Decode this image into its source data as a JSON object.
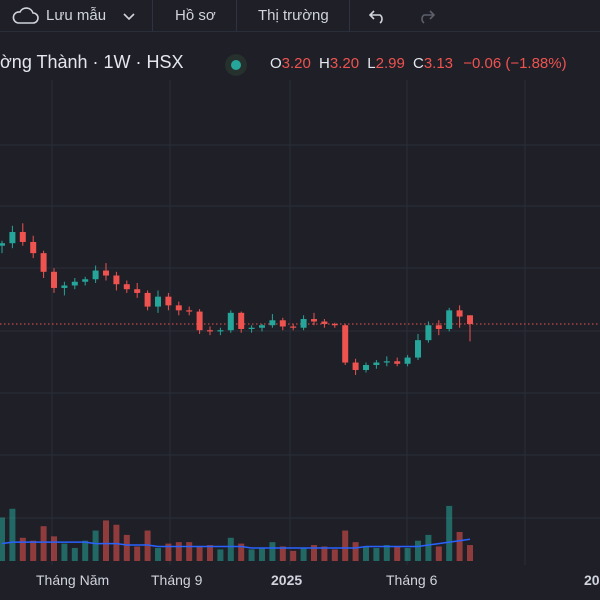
{
  "toolbar": {
    "save_label": "Lưu mẫu",
    "profile_label": "Hồ sơ",
    "market_label": "Thị trường"
  },
  "legend": {
    "symbol": "ờng Thành · 1W · HSX",
    "open_label": "O",
    "open": "3.20",
    "high_label": "H",
    "high": "3.20",
    "low_label": "L",
    "low": "2.99",
    "close_label": "C",
    "close": "3.13",
    "change": "−0.06 (−1.88%)"
  },
  "colors": {
    "up": "#26a69a",
    "down": "#ef5350",
    "ma": "#2962ff",
    "background": "#1e1f27",
    "grid": "#2a2e39"
  },
  "x_axis": {
    "labels": [
      "Tháng Năm",
      "Tháng 9",
      "2025",
      "Tháng 6",
      "20"
    ]
  },
  "chart_data": {
    "type": "candlestick",
    "price_line": 3.13,
    "candles": [
      [
        3.76,
        3.8,
        3.7,
        3.78
      ],
      [
        3.78,
        3.92,
        3.74,
        3.87
      ],
      [
        3.87,
        3.94,
        3.76,
        3.79
      ],
      [
        3.79,
        3.84,
        3.66,
        3.7
      ],
      [
        3.7,
        3.72,
        3.5,
        3.55
      ],
      [
        3.55,
        3.58,
        3.38,
        3.42
      ],
      [
        3.42,
        3.47,
        3.36,
        3.44
      ],
      [
        3.44,
        3.5,
        3.41,
        3.47
      ],
      [
        3.47,
        3.51,
        3.44,
        3.49
      ],
      [
        3.49,
        3.6,
        3.46,
        3.56
      ],
      [
        3.56,
        3.62,
        3.48,
        3.52
      ],
      [
        3.52,
        3.55,
        3.4,
        3.45
      ],
      [
        3.45,
        3.48,
        3.38,
        3.41
      ],
      [
        3.41,
        3.46,
        3.34,
        3.38
      ],
      [
        3.38,
        3.4,
        3.24,
        3.27
      ],
      [
        3.27,
        3.4,
        3.22,
        3.35
      ],
      [
        3.35,
        3.38,
        3.24,
        3.28
      ],
      [
        3.28,
        3.31,
        3.2,
        3.24
      ],
      [
        3.24,
        3.27,
        3.2,
        3.23
      ],
      [
        3.23,
        3.25,
        3.05,
        3.08
      ],
      [
        3.08,
        3.11,
        3.04,
        3.07
      ],
      [
        3.07,
        3.1,
        3.04,
        3.08
      ],
      [
        3.08,
        3.24,
        3.06,
        3.22
      ],
      [
        3.22,
        3.23,
        3.06,
        3.09
      ],
      [
        3.09,
        3.12,
        3.06,
        3.1
      ],
      [
        3.1,
        3.13,
        3.07,
        3.12
      ],
      [
        3.12,
        3.21,
        3.1,
        3.16
      ],
      [
        3.16,
        3.18,
        3.08,
        3.11
      ],
      [
        3.11,
        3.13,
        3.08,
        3.1
      ],
      [
        3.1,
        3.2,
        3.08,
        3.17
      ],
      [
        3.17,
        3.22,
        3.12,
        3.15
      ],
      [
        3.15,
        3.17,
        3.1,
        3.13
      ],
      [
        3.13,
        3.14,
        3.1,
        3.12
      ],
      [
        3.12,
        3.13,
        2.8,
        2.82
      ],
      [
        2.82,
        2.85,
        2.72,
        2.76
      ],
      [
        2.76,
        2.82,
        2.74,
        2.8
      ],
      [
        2.8,
        2.84,
        2.77,
        2.82
      ],
      [
        2.82,
        2.87,
        2.79,
        2.83
      ],
      [
        2.83,
        2.86,
        2.79,
        2.81
      ],
      [
        2.81,
        2.88,
        2.79,
        2.86
      ],
      [
        2.86,
        3.05,
        2.84,
        3.0
      ],
      [
        3.0,
        3.15,
        2.98,
        3.12
      ],
      [
        3.12,
        3.16,
        3.04,
        3.09
      ],
      [
        3.09,
        3.26,
        3.07,
        3.24
      ],
      [
        3.24,
        3.28,
        3.1,
        3.19
      ],
      [
        3.2,
        3.2,
        2.99,
        3.13
      ]
    ],
    "volumes": [
      30,
      36,
      16,
      14,
      24,
      17,
      12,
      9,
      14,
      21,
      28,
      25,
      18,
      10,
      21,
      9,
      12,
      13,
      13,
      10,
      11,
      8,
      16,
      12,
      8,
      9,
      13,
      10,
      7,
      9,
      11,
      10,
      8,
      21,
      13,
      10,
      9,
      11,
      10,
      9,
      14,
      18,
      10,
      38,
      20,
      11
    ],
    "volume_ma": [
      12,
      13,
      13,
      13,
      13,
      13,
      13,
      13,
      13,
      12,
      12,
      12,
      11,
      11,
      11,
      10,
      10,
      10,
      10,
      10,
      10,
      10,
      10,
      10,
      9,
      9,
      9,
      9,
      9,
      9,
      9,
      9,
      9,
      9,
      9,
      10,
      10,
      10,
      10,
      10,
      10,
      11,
      12,
      13,
      14,
      15
    ]
  }
}
